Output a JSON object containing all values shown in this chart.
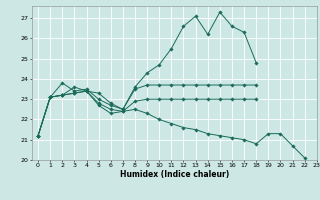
{
  "xlabel": "Humidex (Indice chaleur)",
  "background_color": "#cde8e4",
  "grid_color": "#ffffff",
  "line_color": "#1a6b5a",
  "xlim": [
    -0.5,
    23
  ],
  "ylim": [
    20,
    27.6
  ],
  "yticks": [
    20,
    21,
    22,
    23,
    24,
    25,
    26,
    27
  ],
  "xticks": [
    0,
    1,
    2,
    3,
    4,
    5,
    6,
    7,
    8,
    9,
    10,
    11,
    12,
    13,
    14,
    15,
    16,
    17,
    18,
    19,
    20,
    21,
    22,
    23
  ],
  "line1_x": [
    0,
    1,
    2,
    3,
    4,
    5,
    6,
    7,
    8,
    9,
    10,
    11,
    12,
    13,
    14,
    15,
    16,
    17,
    18
  ],
  "line1_y": [
    21.2,
    23.1,
    23.2,
    23.6,
    23.4,
    23.3,
    22.8,
    22.5,
    23.6,
    24.3,
    24.7,
    25.5,
    26.6,
    27.1,
    26.2,
    27.3,
    26.6,
    26.3,
    24.8
  ],
  "line2_x": [
    0,
    1,
    2,
    3,
    4,
    5,
    6,
    7,
    8,
    9,
    10,
    11,
    12,
    13,
    14,
    15,
    16,
    17,
    18
  ],
  "line2_y": [
    21.2,
    23.1,
    23.8,
    23.4,
    23.5,
    23.0,
    22.7,
    22.5,
    23.5,
    23.7,
    23.7,
    23.7,
    23.7,
    23.7,
    23.7,
    23.7,
    23.7,
    23.7,
    23.7
  ],
  "line3_x": [
    0,
    1,
    2,
    3,
    4,
    5,
    6,
    7,
    8,
    9,
    10,
    11,
    12,
    13,
    14,
    15,
    16,
    17,
    18
  ],
  "line3_y": [
    21.2,
    23.1,
    23.2,
    23.3,
    23.4,
    22.8,
    22.5,
    22.4,
    22.9,
    23.0,
    23.0,
    23.0,
    23.0,
    23.0,
    23.0,
    23.0,
    23.0,
    23.0,
    23.0
  ],
  "line4_x": [
    0,
    1,
    2,
    3,
    4,
    5,
    6,
    7,
    8,
    9,
    10,
    11,
    12,
    13,
    14,
    15,
    16,
    17,
    18,
    19,
    20,
    21,
    22
  ],
  "line4_y": [
    21.2,
    23.1,
    23.2,
    23.3,
    23.4,
    22.7,
    22.3,
    22.4,
    22.5,
    22.3,
    22.0,
    21.8,
    21.6,
    21.5,
    21.3,
    21.2,
    21.1,
    21.0,
    20.8,
    21.3,
    21.3,
    20.7,
    20.1
  ]
}
